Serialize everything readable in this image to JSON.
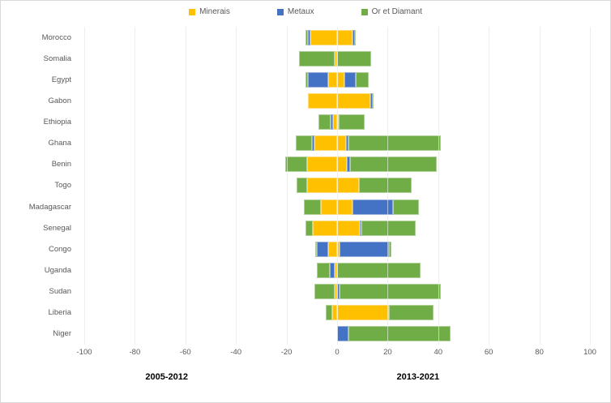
{
  "chart_data": {
    "type": "bar",
    "orientation": "horizontal",
    "stacked": true,
    "grid": true,
    "legend_position": "top",
    "xlim": [
      -100,
      100
    ],
    "x_ticks": [
      -100,
      -80,
      -60,
      -40,
      -20,
      0,
      20,
      40,
      60,
      80,
      100
    ],
    "categories": [
      "Morocco",
      "Somalia",
      "Egypt",
      "Gabon",
      "Ethiopia",
      "Ghana",
      "Benin",
      "Togo",
      "Madagascar",
      "Senegal",
      "Congo",
      "Uganda",
      "Sudan",
      "Liberia",
      "Niger"
    ],
    "series": [
      {
        "name": "Minerais",
        "color": "#FFC000",
        "neg": [
          -10.5,
          -1,
          -3.5,
          -11.5,
          -1.5,
          -9,
          -12,
          -12,
          -6.5,
          -9.5,
          -3.5,
          -1,
          -1,
          -2,
          0
        ],
        "pos": [
          6,
          0,
          3,
          13,
          0.5,
          3.5,
          4,
          8.5,
          6,
          9,
          1,
          0,
          0,
          20.5,
          0
        ]
      },
      {
        "name": "Metaux",
        "color": "#4472C4",
        "neg": [
          -1,
          0,
          -8,
          0,
          -1,
          -1,
          0,
          0,
          0,
          0,
          -4.5,
          -2,
          0,
          0,
          0
        ],
        "pos": [
          1,
          0,
          4.5,
          1,
          0,
          1,
          1,
          0,
          16,
          0.5,
          19.5,
          0,
          1,
          0,
          4.5
        ]
      },
      {
        "name": "Or et Diamant",
        "color": "#70AD47",
        "neg": [
          -1,
          -14,
          -1,
          0,
          -5,
          -6.5,
          -8.5,
          -4,
          -6.5,
          -3,
          -0.5,
          -5,
          -8,
          -2.5,
          0
        ],
        "pos": [
          0.5,
          13.5,
          5,
          0.5,
          10.5,
          36.5,
          34.5,
          21,
          10.5,
          21.5,
          1,
          33,
          40,
          17.5,
          40.5
        ]
      }
    ],
    "period_labels": {
      "left": "2005-2012",
      "right": "2013-2021"
    },
    "colors": {
      "gridline": "#d9d9d9",
      "axis_text": "#595959"
    }
  }
}
